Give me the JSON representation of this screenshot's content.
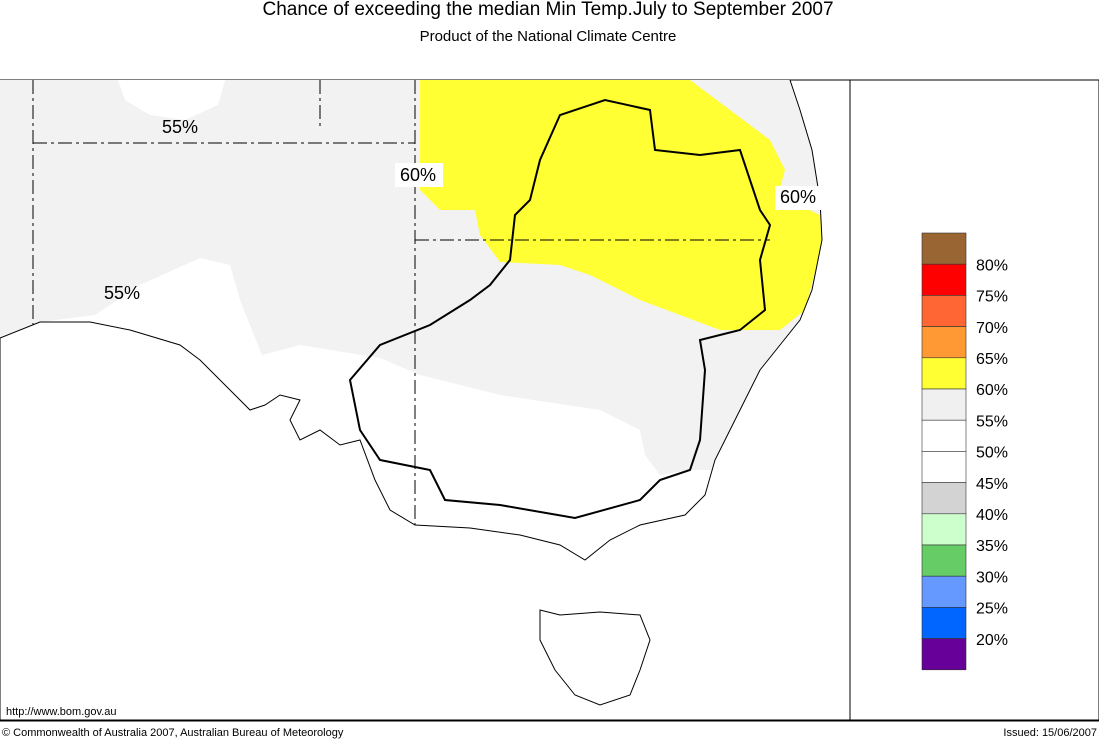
{
  "header": {
    "title": "Chance of exceeding the median Min Temp.July to September 2007",
    "subtitle": "Product of the National Climate Centre"
  },
  "map": {
    "contour_labels": [
      "55%",
      "60%",
      "60%",
      "55%"
    ]
  },
  "legend": {
    "colors": [
      "#996633",
      "#ff0000",
      "#ff6633",
      "#ff9933",
      "#ffff33",
      "#f0f0f0",
      "#ffffff",
      "#ffffff",
      "#d3d3d3",
      "#ccffcc",
      "#66cc66",
      "#6699ff",
      "#0066ff",
      "#660099"
    ],
    "labels": [
      "80%",
      "75%",
      "70%",
      "65%",
      "60%",
      "55%",
      "50%",
      "45%",
      "40%",
      "35%",
      "30%",
      "25%",
      "20%"
    ]
  },
  "footer": {
    "url": "http://www.bom.gov.au",
    "copyright": "© Commonwealth of Australia 2007, Australian Bureau of Meteorology",
    "issued": "Issued: 15/06/2007"
  }
}
